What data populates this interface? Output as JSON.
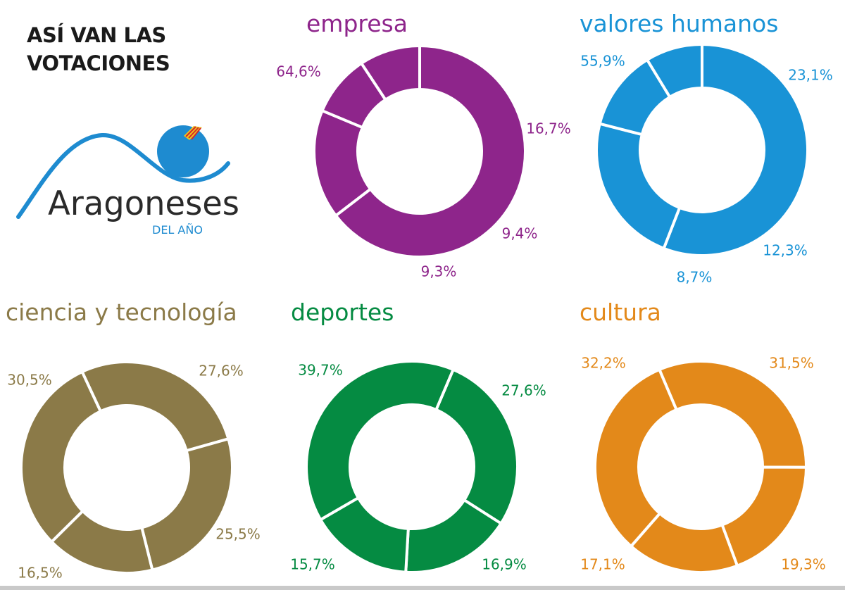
{
  "headline": {
    "line1": "ASÍ VAN LAS",
    "line2": "VOTACIONES"
  },
  "logo": {
    "wordmark": "Aragoneses",
    "subtitle": "DEL AÑO"
  },
  "chart_data": [
    {
      "type": "pie",
      "title": "empresa",
      "color": "#8e258b",
      "values": [
        64.6,
        16.7,
        9.4,
        9.3
      ],
      "labels": [
        "64,6%",
        "16,7%",
        "9,4%",
        "9,3%"
      ]
    },
    {
      "type": "pie",
      "title": "valores humanos",
      "color": "#1993d6",
      "values": [
        55.9,
        23.1,
        12.3,
        8.7
      ],
      "labels": [
        "55,9%",
        "23,1%",
        "12,3%",
        "8,7%"
      ]
    },
    {
      "type": "pie",
      "title": "ciencia y tecnología",
      "color": "#8b7a48",
      "values": [
        27.6,
        25.5,
        16.5,
        30.5
      ],
      "labels": [
        "27,6%",
        "25,5%",
        "16,5%",
        "30,5%"
      ]
    },
    {
      "type": "pie",
      "title": "deportes",
      "color": "#058b42",
      "values": [
        27.6,
        16.9,
        15.7,
        39.7
      ],
      "labels": [
        "27,6%",
        "16,9%",
        "15,7%",
        "39,7%"
      ]
    },
    {
      "type": "pie",
      "title": "cultura",
      "color": "#e3891a",
      "values": [
        31.5,
        19.3,
        17.1,
        32.2
      ],
      "labels": [
        "31,5%",
        "19,3%",
        "17,1%",
        "32,2%"
      ]
    }
  ]
}
